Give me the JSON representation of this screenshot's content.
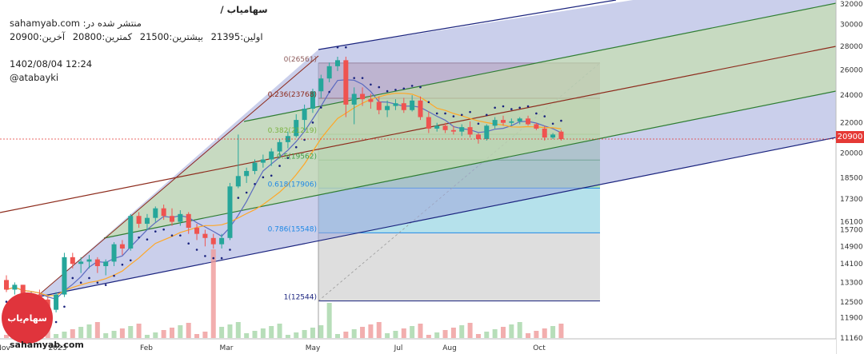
{
  "header": {
    "ticker": "سهامیاب /",
    "published_on": "منتشر شده در: sahamyab.com",
    "stats": {
      "first": "اولین:21395",
      "high": "بیشترین:21500",
      "low": "کمترین:20800",
      "last": "آخرین:20900"
    },
    "date": "1402/08/04 12:24",
    "author": "@atabayki"
  },
  "watermark": {
    "site": "sahamyab.com",
    "logo_text": "سهام‌یاب"
  },
  "colors": {
    "up": "#26a69a",
    "down": "#ef5350",
    "ma_fast": "#5c6bc0",
    "ma_slow": "#ffa726",
    "channel_outer": "#1a237e",
    "channel_inner": "#2e7d32",
    "channel_mid": "#8d2b1c",
    "last_price": "#e53935"
  },
  "chart_data": {
    "type": "candlestick",
    "y_scale": "log",
    "ylim": [
      11160,
      32000
    ],
    "y_ticks": [
      11160,
      11900,
      12500,
      13300,
      14100,
      14900,
      15700,
      16100,
      17300,
      18500,
      20000,
      21000,
      22000,
      24000,
      26000,
      28000,
      30000,
      32000
    ],
    "x_ticks": [
      "Oct",
      "Nov",
      "2023",
      "Feb",
      "Mar",
      "May",
      "Jul",
      "Aug",
      "Oct"
    ],
    "last_price": 20900,
    "fibonacci": {
      "levels": [
        {
          "label": "0(26561)",
          "value": 26561
        },
        {
          "label": "0.236(23768)",
          "value": 23768
        },
        {
          "label": "0.382(21219)",
          "value": 21219
        },
        {
          "label": "0.5(19562)",
          "value": 19562
        },
        {
          "label": "0.618(17906)",
          "value": 17906
        },
        {
          "label": "0.786(15548)",
          "value": 15548
        },
        {
          "label": "1(12544)",
          "value": 12544
        }
      ]
    },
    "candles": [
      [
        13400,
        13600,
        12900,
        13000
      ],
      [
        13000,
        13300,
        12800,
        13200
      ],
      [
        13200,
        13200,
        12600,
        12700
      ],
      [
        12700,
        12900,
        12400,
        12800
      ],
      [
        12800,
        13000,
        12500,
        12600
      ],
      [
        12600,
        12700,
        12000,
        12200
      ],
      [
        12200,
        12900,
        12100,
        12800
      ],
      [
        12800,
        14600,
        12700,
        14400
      ],
      [
        14400,
        14600,
        13900,
        14100
      ],
      [
        14100,
        14400,
        13700,
        14200
      ],
      [
        14200,
        14500,
        13900,
        14300
      ],
      [
        14300,
        14400,
        13700,
        14000
      ],
      [
        14000,
        14300,
        13600,
        14200
      ],
      [
        14200,
        15100,
        14000,
        15000
      ],
      [
        15000,
        15200,
        14500,
        14800
      ],
      [
        14800,
        16500,
        14700,
        16400
      ],
      [
        16400,
        16600,
        15800,
        16000
      ],
      [
        16000,
        16500,
        15700,
        16300
      ],
      [
        16300,
        16900,
        16100,
        16800
      ],
      [
        16800,
        17000,
        16200,
        16400
      ],
      [
        16400,
        16800,
        15900,
        16100
      ],
      [
        16100,
        16700,
        15900,
        16500
      ],
      [
        16500,
        16600,
        15500,
        15800
      ],
      [
        15800,
        16000,
        15200,
        15500
      ],
      [
        15500,
        15700,
        14900,
        15300
      ],
      [
        15300,
        15500,
        14800,
        15000
      ],
      [
        15000,
        15500,
        14800,
        15300
      ],
      [
        15300,
        18200,
        15200,
        18000
      ],
      [
        18000,
        21200,
        17900,
        18600
      ],
      [
        18600,
        19100,
        18200,
        18900
      ],
      [
        18900,
        19600,
        18700,
        19400
      ],
      [
        19400,
        19900,
        19100,
        19600
      ],
      [
        19600,
        20300,
        19200,
        20100
      ],
      [
        20100,
        20900,
        19800,
        20700
      ],
      [
        20700,
        21400,
        20300,
        21100
      ],
      [
        21100,
        22600,
        21000,
        22200
      ],
      [
        22200,
        23300,
        21500,
        23000
      ],
      [
        23000,
        24500,
        22700,
        24300
      ],
      [
        24300,
        25600,
        23800,
        25300
      ],
      [
        25300,
        26600,
        25000,
        26300
      ],
      [
        26300,
        27100,
        25900,
        26800
      ],
      [
        26800,
        27100,
        22400,
        23300
      ],
      [
        23300,
        24600,
        21900,
        24100
      ],
      [
        24100,
        24600,
        23200,
        23700
      ],
      [
        23700,
        24100,
        23000,
        23500
      ],
      [
        23500,
        23900,
        22600,
        22900
      ],
      [
        22900,
        23600,
        22400,
        23200
      ],
      [
        23200,
        23700,
        22900,
        23400
      ],
      [
        23400,
        23800,
        22700,
        22900
      ],
      [
        22900,
        24000,
        22800,
        23600
      ],
      [
        23600,
        23900,
        22200,
        22400
      ],
      [
        22400,
        22800,
        21300,
        21600
      ],
      [
        21600,
        22000,
        21400,
        21800
      ],
      [
        21800,
        22000,
        21300,
        21500
      ],
      [
        21500,
        21800,
        21200,
        21400
      ],
      [
        21400,
        21900,
        21100,
        21700
      ],
      [
        21700,
        22100,
        21000,
        21200
      ],
      [
        21200,
        21300,
        20600,
        20900
      ],
      [
        20900,
        21900,
        20800,
        21800
      ],
      [
        21800,
        22400,
        21600,
        22200
      ],
      [
        22200,
        22500,
        21800,
        22000
      ],
      [
        22000,
        22300,
        21800,
        22100
      ],
      [
        22100,
        22400,
        21900,
        22300
      ],
      [
        22300,
        22500,
        21800,
        21900
      ],
      [
        21900,
        22000,
        21500,
        21600
      ],
      [
        21600,
        21800,
        20800,
        21000
      ],
      [
        21000,
        21300,
        20900,
        21200
      ],
      [
        21395,
        21500,
        20800,
        20900
      ]
    ]
  }
}
